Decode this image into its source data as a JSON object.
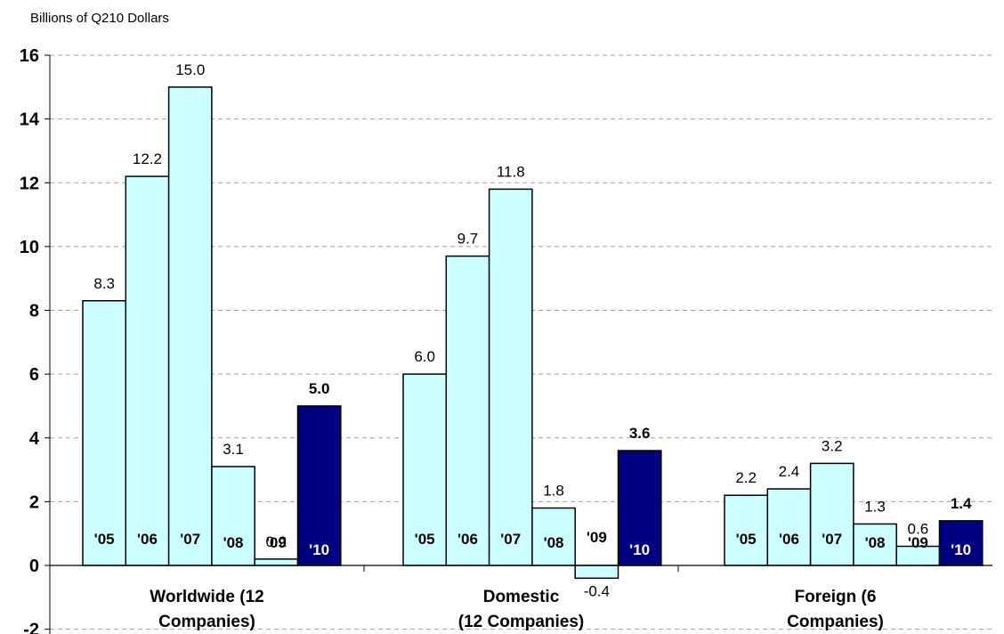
{
  "chart_data": {
    "type": "bar",
    "title": "",
    "ylabel": "Billions of Q210 Dollars",
    "xlabel": "",
    "ylim": [
      -2,
      16
    ],
    "yticks": [
      -2,
      0,
      2,
      4,
      6,
      8,
      10,
      12,
      14,
      16
    ],
    "grid": "dashed horizontal",
    "groups": [
      {
        "label_lines": [
          "Worldwide (12",
          "Companies)"
        ],
        "bars": [
          {
            "year": "'05",
            "value": 8.3,
            "label": "8.3"
          },
          {
            "year": "'06",
            "value": 12.2,
            "label": "12.2"
          },
          {
            "year": "'07",
            "value": 15.0,
            "label": "15.0"
          },
          {
            "year": "'08",
            "value": 3.1,
            "label": "3.1"
          },
          {
            "year": "'09",
            "value": 0.2,
            "label": "0.2"
          },
          {
            "year": "'10",
            "value": 5.0,
            "label": "5.0",
            "highlight": true
          }
        ]
      },
      {
        "label_lines": [
          "Domestic",
          "(12 Companies)"
        ],
        "bars": [
          {
            "year": "'05",
            "value": 6.0,
            "label": "6.0"
          },
          {
            "year": "'06",
            "value": 9.7,
            "label": "9.7"
          },
          {
            "year": "'07",
            "value": 11.8,
            "label": "11.8"
          },
          {
            "year": "'08",
            "value": 1.8,
            "label": "1.8"
          },
          {
            "year": "'09",
            "value": -0.4,
            "label": "-0.4"
          },
          {
            "year": "'10",
            "value": 3.6,
            "label": "3.6",
            "highlight": true
          }
        ]
      },
      {
        "label_lines": [
          "Foreign (6",
          "Companies)"
        ],
        "bars": [
          {
            "year": "'05",
            "value": 2.2,
            "label": "2.2"
          },
          {
            "year": "'06",
            "value": 2.4,
            "label": "2.4"
          },
          {
            "year": "'07",
            "value": 3.2,
            "label": "3.2"
          },
          {
            "year": "'08",
            "value": 1.3,
            "label": "1.3"
          },
          {
            "year": "'09",
            "value": 0.6,
            "label": "0.6"
          },
          {
            "year": "'10",
            "value": 1.4,
            "label": "1.4",
            "highlight": true
          }
        ]
      }
    ],
    "colors": {
      "bar_fill": "#CCFFFF",
      "highlight_fill": "#000080",
      "bar_stroke": "#000000",
      "grid": "#A0A0A0",
      "highlight_text": "#FFFFFF"
    }
  }
}
